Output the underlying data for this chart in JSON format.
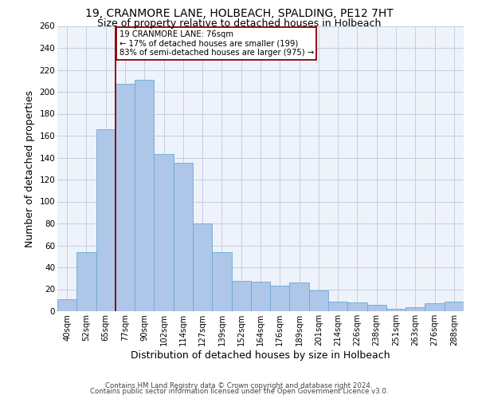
{
  "title": "19, CRANMORE LANE, HOLBEACH, SPALDING, PE12 7HT",
  "subtitle": "Size of property relative to detached houses in Holbeach",
  "xlabel": "Distribution of detached houses by size in Holbeach",
  "ylabel": "Number of detached properties",
  "categories": [
    "40sqm",
    "52sqm",
    "65sqm",
    "77sqm",
    "90sqm",
    "102sqm",
    "114sqm",
    "127sqm",
    "139sqm",
    "152sqm",
    "164sqm",
    "176sqm",
    "189sqm",
    "201sqm",
    "214sqm",
    "226sqm",
    "238sqm",
    "251sqm",
    "263sqm",
    "276sqm",
    "288sqm"
  ],
  "values": [
    11,
    54,
    166,
    207,
    211,
    143,
    135,
    80,
    54,
    28,
    27,
    23,
    26,
    19,
    9,
    8,
    6,
    2,
    4,
    7,
    9
  ],
  "bar_color": "#aec6e8",
  "bar_edge_color": "#6aaad4",
  "annotation_line_bin": 3,
  "annotation_text_lines": [
    "19 CRANMORE LANE: 76sqm",
    "← 17% of detached houses are smaller (199)",
    "83% of semi-detached houses are larger (975) →"
  ],
  "annotation_box_color": "white",
  "annotation_box_edge_color": "#8b0000",
  "vline_color": "#8b0000",
  "footer1": "Contains HM Land Registry data © Crown copyright and database right 2024.",
  "footer2": "Contains public sector information licensed under the Open Government Licence v3.0.",
  "bg_color": "#eef2fa",
  "grid_color": "#c5cde0",
  "title_fontsize": 10,
  "subtitle_fontsize": 9,
  "ylabel_fontsize": 9,
  "xlabel_fontsize": 9,
  "ylim": [
    0,
    260
  ],
  "yticks": [
    0,
    20,
    40,
    60,
    80,
    100,
    120,
    140,
    160,
    180,
    200,
    220,
    240,
    260
  ]
}
